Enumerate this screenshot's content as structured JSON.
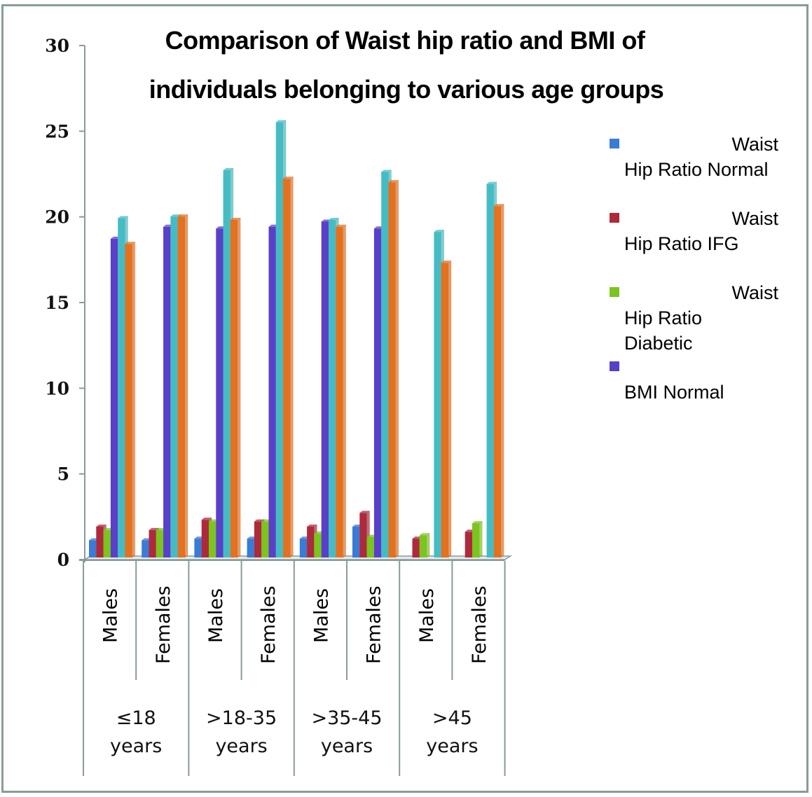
{
  "chart_data": {
    "type": "bar",
    "title_lines": [
      "Comparison of Waist hip ratio and BMI of",
      "individuals belonging to various age groups"
    ],
    "xlabel": "",
    "ylabel": "",
    "ylim": [
      0,
      30
    ],
    "yticks": [
      0,
      5,
      10,
      15,
      20,
      25,
      30
    ],
    "grid": false,
    "legend_position": "right",
    "categories": [
      "Males",
      "Females",
      "Males",
      "Females",
      "Males",
      "Females",
      "Males",
      "Females"
    ],
    "groups": [
      {
        "label_lines": [
          "≤18",
          "years"
        ],
        "span": 2
      },
      {
        "label_lines": [
          ">18-35",
          "years"
        ],
        "span": 2
      },
      {
        "label_lines": [
          ">35-45",
          "years"
        ],
        "span": 2
      },
      {
        "label_lines": [
          ">45",
          "years"
        ],
        "span": 2
      }
    ],
    "series": [
      {
        "name": "Waist Hip Ratio Normal",
        "legend_lines": [
          "Waist",
          "Hip Ratio Normal"
        ],
        "color": "#3a7bd5",
        "values": [
          1.0,
          1.0,
          1.1,
          1.1,
          1.1,
          1.8,
          0,
          0
        ]
      },
      {
        "name": "Waist Hip Ratio IFG",
        "legend_lines": [
          "Waist",
          "Hip Ratio IFG"
        ],
        "color": "#ad2a3c",
        "values": [
          1.8,
          1.6,
          2.2,
          2.1,
          1.8,
          2.6,
          1.1,
          1.5
        ]
      },
      {
        "name": "Waist Hip Ratio Diabetic",
        "legend_lines": [
          "Waist",
          "Hip Ratio",
          "Diabetic"
        ],
        "color": "#7cc41e",
        "values": [
          1.6,
          1.6,
          2.1,
          2.1,
          1.4,
          1.2,
          1.3,
          2.0
        ]
      },
      {
        "name": "BMI Normal",
        "legend_lines": [
          "",
          "BMI Normal"
        ],
        "color": "#5a3fc8",
        "values": [
          18.6,
          19.3,
          19.2,
          19.3,
          19.6,
          19.2,
          0,
          0
        ]
      },
      {
        "name": "",
        "legend_lines": [],
        "color": "#45bcc4",
        "values": [
          19.8,
          19.9,
          22.6,
          25.4,
          19.7,
          22.5,
          19.0,
          21.8
        ]
      },
      {
        "name": "",
        "legend_lines": [],
        "color": "#e3711f",
        "values": [
          18.3,
          19.9,
          19.7,
          22.1,
          19.3,
          21.9,
          17.2,
          20.5
        ]
      }
    ]
  }
}
